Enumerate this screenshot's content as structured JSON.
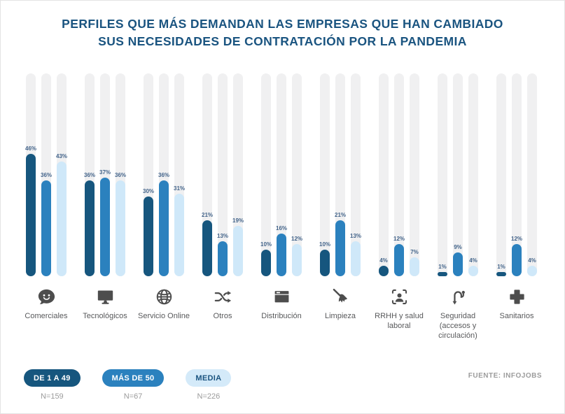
{
  "title": {
    "line1": "PERFILES QUE MÁS DEMANDAN LAS EMPRESAS QUE HAN CAMBIADO",
    "line2": "SUS NECESIDADES DE CONTRATACIÓN POR LA PANDEMIA"
  },
  "colors": {
    "title": "#1A5480",
    "bar_dark": "#16567E",
    "bar_medium": "#2B81BE",
    "bar_light": "#CFE8F9",
    "track": "#F0F0F1",
    "value_label": "#43648A",
    "icon": "#4D4D4D",
    "category_label": "#58595B",
    "muted_text": "#9B9B9B"
  },
  "chart_data": {
    "type": "bar",
    "unit": "%",
    "ylim": [
      0,
      100
    ],
    "grid": false,
    "legend_position": "bottom-left",
    "categories": [
      {
        "label": "Comerciales",
        "icon": "chat-smiley-icon"
      },
      {
        "label": "Tecnológicos",
        "icon": "monitor-icon"
      },
      {
        "label": "Servicio Online",
        "icon": "globe-icon"
      },
      {
        "label": "Otros",
        "icon": "shuffle-icon"
      },
      {
        "label": "Distribución",
        "icon": "package-icon"
      },
      {
        "label": "Limpieza",
        "icon": "broom-icon"
      },
      {
        "label": "RRHH y salud laboral",
        "icon": "person-scan-icon"
      },
      {
        "label": "Seguridad (accesos y circulación)",
        "icon": "route-icon"
      },
      {
        "label": "Sanitarios",
        "icon": "medical-cross-icon"
      }
    ],
    "series": [
      {
        "name": "DE 1 A 49",
        "n": "N=159",
        "values": [
          46,
          36,
          30,
          21,
          10,
          10,
          4,
          1,
          1
        ]
      },
      {
        "name": "MÁS DE 50",
        "n": "N=67",
        "values": [
          36,
          37,
          36,
          13,
          16,
          21,
          12,
          9,
          12
        ]
      },
      {
        "name": "MEDIA",
        "n": "N=226",
        "values": [
          43,
          36,
          31,
          19,
          12,
          13,
          7,
          4,
          4
        ]
      }
    ]
  },
  "source": "FUENTE: INFOJOBS"
}
